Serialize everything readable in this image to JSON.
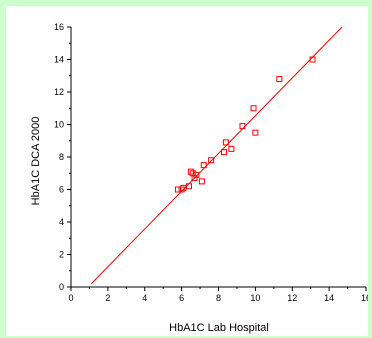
{
  "chart_data": {
    "type": "scatter",
    "title": "",
    "xlabel": "HbA1C Lab Hospital",
    "ylabel": "HbA1C DCA 2000",
    "xlim": [
      0,
      16
    ],
    "ylim": [
      0,
      16
    ],
    "xticks": [
      0,
      2,
      4,
      6,
      8,
      10,
      12,
      14,
      16
    ],
    "yticks": [
      0,
      2,
      4,
      6,
      8,
      10,
      12,
      14,
      16
    ],
    "grid": false,
    "series": [
      {
        "marker": "open-square",
        "color": "#ff0000",
        "points": [
          {
            "x": 5.8,
            "y": 6.0
          },
          {
            "x": 6.0,
            "y": 6.0
          },
          {
            "x": 6.1,
            "y": 6.1
          },
          {
            "x": 6.4,
            "y": 6.2
          },
          {
            "x": 6.5,
            "y": 7.1
          },
          {
            "x": 6.6,
            "y": 7.0
          },
          {
            "x": 6.7,
            "y": 6.7
          },
          {
            "x": 6.8,
            "y": 6.9
          },
          {
            "x": 7.1,
            "y": 6.5
          },
          {
            "x": 7.2,
            "y": 7.5
          },
          {
            "x": 7.6,
            "y": 7.8
          },
          {
            "x": 8.3,
            "y": 8.3
          },
          {
            "x": 8.4,
            "y": 8.9
          },
          {
            "x": 8.7,
            "y": 8.5
          },
          {
            "x": 9.3,
            "y": 9.9
          },
          {
            "x": 9.9,
            "y": 11.0
          },
          {
            "x": 10.0,
            "y": 9.5
          },
          {
            "x": 11.3,
            "y": 12.8
          },
          {
            "x": 13.1,
            "y": 14.0
          }
        ]
      }
    ],
    "fit_line": {
      "x": [
        1.1,
        14.7
      ],
      "y": [
        0.2,
        16.0
      ],
      "color": "#ff0000"
    }
  }
}
